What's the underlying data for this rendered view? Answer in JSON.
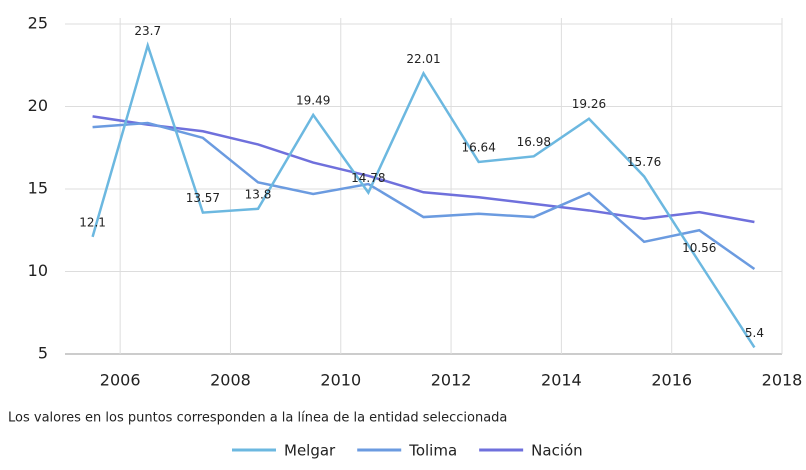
{
  "chart_data": {
    "type": "line",
    "x": [
      2005.5,
      2006.5,
      2007.5,
      2008.5,
      2009.5,
      2010.5,
      2011.5,
      2012.5,
      2013.5,
      2014.5,
      2015.5,
      2016.5,
      2017.5
    ],
    "series": [
      {
        "name": "Melgar",
        "color": "#6cb8e0",
        "values": [
          12.1,
          23.7,
          13.57,
          13.8,
          19.49,
          14.78,
          22.01,
          16.64,
          16.98,
          19.26,
          15.76,
          10.56,
          5.4
        ]
      },
      {
        "name": "Tolima",
        "color": "#6b9be0",
        "values": [
          18.75,
          19.0,
          18.1,
          15.4,
          14.7,
          15.3,
          13.3,
          13.5,
          13.3,
          14.75,
          11.8,
          12.5,
          10.15
        ]
      },
      {
        "name": "Nación",
        "color": "#6f70dc",
        "values": [
          19.4,
          18.9,
          18.5,
          17.7,
          16.6,
          15.8,
          14.8,
          14.5,
          14.1,
          13.7,
          13.2,
          13.6,
          13.0
        ]
      }
    ],
    "xlim": [
      2005,
      2018
    ],
    "xticks": [
      2006,
      2008,
      2010,
      2012,
      2014,
      2016,
      2018
    ],
    "ylim": [
      5,
      25
    ],
    "yticks": [
      5,
      10,
      15,
      20,
      25
    ],
    "grid": true,
    "annotation": "Los valores en los puntos corresponden a la línea de la entidad seleccionada",
    "legend": "bottom"
  }
}
